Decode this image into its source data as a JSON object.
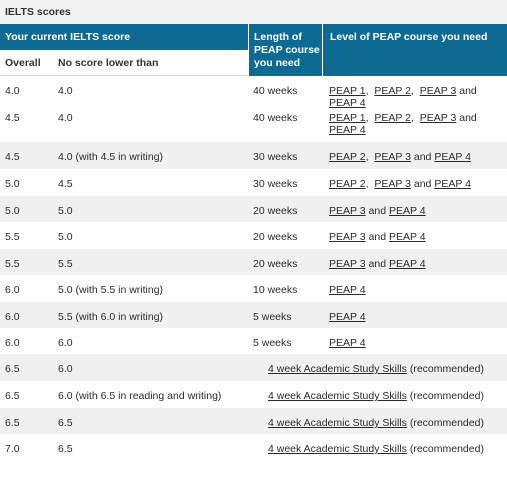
{
  "caption": "IELTS scores",
  "headers": {
    "current": "Your current IELTS score",
    "length": "Length of PEAP course you need",
    "level": "Level of PEAP course you need",
    "overall": "Overall",
    "no_lower": "No score lower than"
  },
  "connectors": {
    "comma": ",",
    "and": "and"
  },
  "study_suffix": "(recommended)",
  "rows": [
    {
      "overall": "4.0",
      "min": "4.0",
      "length": "40 weeks",
      "links": [
        "PEAP 1",
        "PEAP 2",
        "PEAP 3",
        "PEAP 4"
      ]
    },
    {
      "overall": "4.5",
      "min": "4.0",
      "length": "40 weeks",
      "links": [
        "PEAP 1",
        "PEAP 2",
        "PEAP 3",
        "PEAP 4"
      ]
    },
    {
      "overall": "4.5",
      "min": "4.0 (with 4.5 in writing)",
      "length": "30 weeks",
      "links": [
        "PEAP 2",
        "PEAP 3",
        "PEAP 4"
      ]
    },
    {
      "overall": "5.0",
      "min": "4.5",
      "length": "30 weeks",
      "links": [
        "PEAP 2",
        "PEAP 3",
        "PEAP 4"
      ]
    },
    {
      "overall": "5.0",
      "min": "5.0",
      "length": "20 weeks",
      "links": [
        "PEAP 3",
        "PEAP 4"
      ]
    },
    {
      "overall": "5.5",
      "min": "5.0",
      "length": "20 weeks",
      "links": [
        "PEAP 3",
        "PEAP 4"
      ]
    },
    {
      "overall": "5.5",
      "min": "5.5",
      "length": "20 weeks",
      "links": [
        "PEAP 3",
        "PEAP 4"
      ]
    },
    {
      "overall": "6.0",
      "min": "5.0 (with 5.5 in writing)",
      "length": "10 weeks",
      "links": [
        "PEAP 4"
      ]
    },
    {
      "overall": "6.0",
      "min": "5.5 (with 6.0 in writing)",
      "length": "5 weeks",
      "links": [
        "PEAP 4"
      ]
    },
    {
      "overall": "6.0",
      "min": "6.0",
      "length": "5 weeks",
      "links": [
        "PEAP 4"
      ]
    },
    {
      "overall": "6.5",
      "min": "6.0",
      "study": "4 week Academic Study Skills"
    },
    {
      "overall": "6.5",
      "min": "6.0 (with 6.5 in reading and writing)",
      "study": "4 week Academic Study Skills"
    },
    {
      "overall": "6.5",
      "min": "6.5",
      "study": "4 week Academic Study Skills"
    },
    {
      "overall": "7.0",
      "min": "6.5",
      "study": "4 week Academic Study Skills"
    }
  ]
}
